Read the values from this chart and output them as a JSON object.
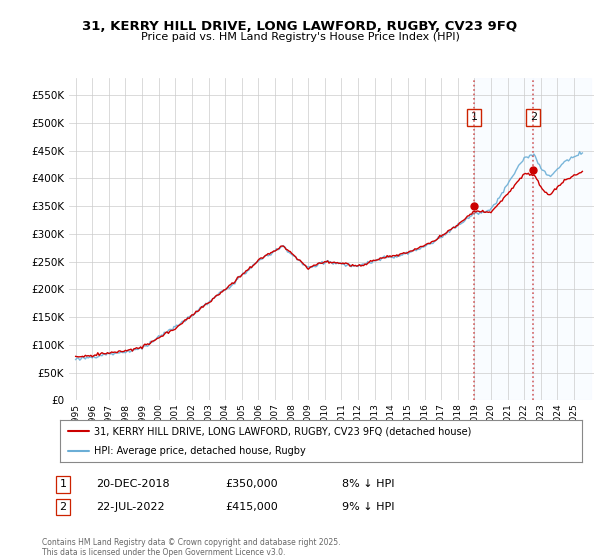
{
  "title": "31, KERRY HILL DRIVE, LONG LAWFORD, RUGBY, CV23 9FQ",
  "subtitle": "Price paid vs. HM Land Registry's House Price Index (HPI)",
  "legend_line1": "31, KERRY HILL DRIVE, LONG LAWFORD, RUGBY, CV23 9FQ (detached house)",
  "legend_line2": "HPI: Average price, detached house, Rugby",
  "annotation1_label": "1",
  "annotation1_date": "20-DEC-2018",
  "annotation1_price": "£350,000",
  "annotation1_hpi": "8% ↓ HPI",
  "annotation2_label": "2",
  "annotation2_date": "22-JUL-2022",
  "annotation2_price": "£415,000",
  "annotation2_hpi": "9% ↓ HPI",
  "footer": "Contains HM Land Registry data © Crown copyright and database right 2025.\nThis data is licensed under the Open Government Licence v3.0.",
  "hpi_color": "#6baed6",
  "price_color": "#cc0000",
  "vline_color": "#cc4444",
  "span_color": "#ddeeff",
  "background_color": "#ffffff",
  "grid_color": "#cccccc",
  "ylim": [
    0,
    580000
  ],
  "yticks": [
    0,
    50000,
    100000,
    150000,
    200000,
    250000,
    300000,
    350000,
    400000,
    450000,
    500000,
    550000
  ],
  "sale1_year": 2018.97,
  "sale1_value": 350000,
  "sale2_year": 2022.55,
  "sale2_value": 415000,
  "xstart": 1995,
  "xend": 2025.5
}
